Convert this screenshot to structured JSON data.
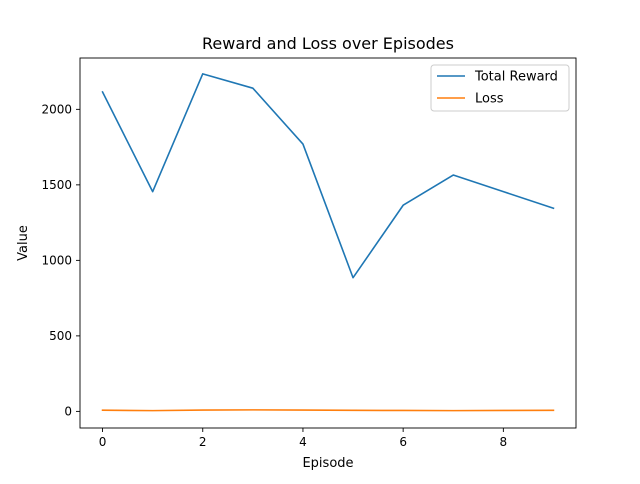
{
  "chart_data": {
    "type": "line",
    "title": "Reward and Loss over Episodes",
    "xlabel": "Episode",
    "ylabel": "Value",
    "x": [
      0,
      1,
      2,
      3,
      4,
      5,
      6,
      7,
      8,
      9
    ],
    "xlim": [
      -0.45,
      9.45
    ],
    "ylim": [
      -110,
      2340
    ],
    "xticks": [
      0,
      2,
      4,
      6,
      8
    ],
    "yticks": [
      0,
      500,
      1000,
      1500,
      2000
    ],
    "grid": false,
    "legend_position": "upper right",
    "series": [
      {
        "name": "Total Reward",
        "color": "#1f77b4",
        "values": [
          2115,
          1455,
          2235,
          2140,
          1770,
          885,
          1365,
          1565,
          1455,
          1345
        ]
      },
      {
        "name": "Loss",
        "color": "#ff7f0e",
        "values": [
          8,
          5,
          9,
          10,
          9,
          7,
          6,
          5,
          6,
          7
        ]
      }
    ]
  }
}
